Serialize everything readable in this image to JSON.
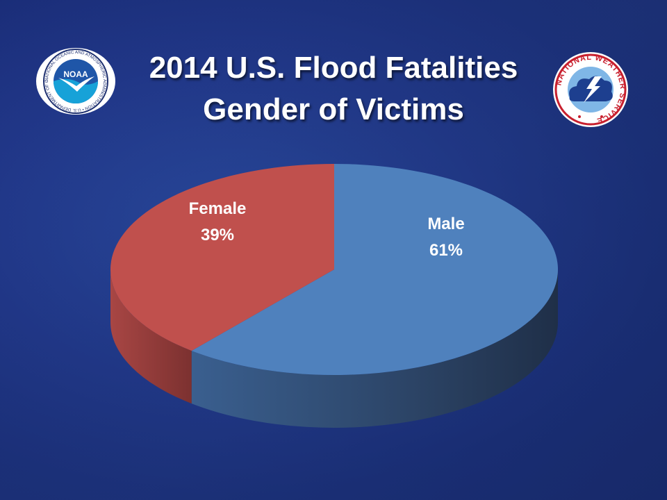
{
  "title_line1": "2014 U.S. Flood Fatalities",
  "title_line2": "Gender of Victims",
  "logos": {
    "noaa": {
      "name": "noaa-logo",
      "text": "NOAA",
      "ring_text": "NATIONAL OCEANIC AND ATMOSPHERIC ADMINISTRATION • U.S. DEPARTMENT OF COMMERCE"
    },
    "nws": {
      "name": "nws-logo",
      "ring_text": "NATIONAL WEATHER SERVICE"
    }
  },
  "colors": {
    "male": "#4f81bd",
    "female": "#c0504d",
    "background": "#21378a"
  },
  "chart_data": {
    "type": "pie",
    "style": "3d",
    "title": "2014 U.S. Flood Fatalities Gender of Victims",
    "slices": [
      {
        "label": "Male",
        "value": 61,
        "display": "61%",
        "color": "#4f81bd"
      },
      {
        "label": "Female",
        "value": 39,
        "display": "39%",
        "color": "#c0504d"
      }
    ],
    "start_angle": "12 o'clock, clockwise",
    "legend": "none (labels on slices)"
  }
}
